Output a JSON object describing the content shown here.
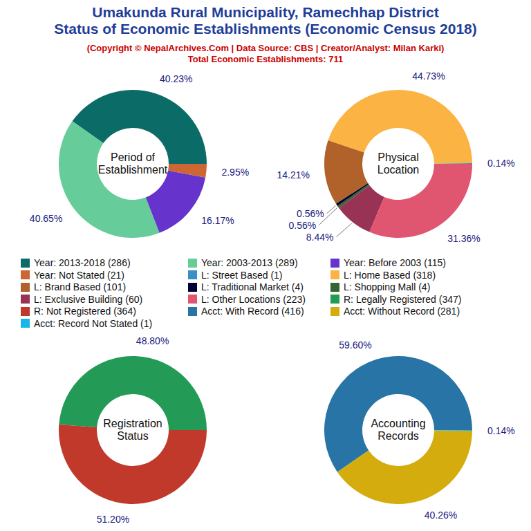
{
  "header": {
    "title": [
      "Umakunda Rural Municipality, Ramechhap District",
      "Status of Economic Establishments (Economic Census 2018)"
    ],
    "subtitle": "(Copyright © NepalArchives.Com | Data Source: CBS | Creator/Analyst: Milan Karki)",
    "total": "Total Economic Establishments: 711"
  },
  "chart_data": [
    {
      "type": "pie",
      "title": "Period of Establishment",
      "categories": [
        "Year: 2013-2018 (286)",
        "Year: 2003-2013 (289)",
        "Year: Before 2003 (115)",
        "Year: Not Stated (21)"
      ],
      "values": [
        40.23,
        40.65,
        16.17,
        2.95
      ],
      "value_labels": [
        "40.23%",
        "40.65%",
        "16.17%",
        "2.95%"
      ],
      "colors": [
        "#0b6b67",
        "#66cc99",
        "#6633cc",
        "#cc6633"
      ],
      "data_labels": true
    },
    {
      "type": "pie",
      "title": "Physical Location",
      "categories": [
        "L: Street Based (1)",
        "L: Home Based (318)",
        "L: Brand Based (101)",
        "L: Traditional Market (4)",
        "L: Shopping Mall (4)",
        "L: Exclusive Building (60)",
        "L: Other Locations (223)"
      ],
      "values": [
        0.14,
        44.73,
        14.21,
        0.56,
        0.56,
        8.44,
        31.36
      ],
      "value_labels": [
        "0.14%",
        "44.73%",
        "14.21%",
        "0.56%",
        "0.56%",
        "8.44%",
        "31.36%"
      ],
      "colors": [
        "#3b8fc8",
        "#fbb444",
        "#b0622a",
        "#000033",
        "#336633",
        "#993355",
        "#e0556f"
      ],
      "data_labels": true
    },
    {
      "type": "pie",
      "title": "Registration Status",
      "categories": [
        "R: Legally Registered (347)",
        "R: Not Registered (364)"
      ],
      "values": [
        48.8,
        51.2
      ],
      "value_labels": [
        "48.80%",
        "51.20%"
      ],
      "colors": [
        "#239b56",
        "#c0392b"
      ],
      "data_labels": true
    },
    {
      "type": "pie",
      "title": "Accounting Records",
      "categories": [
        "Acct: With Record (416)",
        "Acct: Without Record (281)",
        "Acct: Record Not Stated (1)"
      ],
      "values": [
        59.6,
        40.26,
        0.14
      ],
      "value_labels": [
        "59.60%",
        "40.26%",
        "0.14%"
      ],
      "colors": [
        "#2874a6",
        "#d4ac0d",
        "#17b8e8"
      ],
      "data_labels": true
    }
  ]
}
